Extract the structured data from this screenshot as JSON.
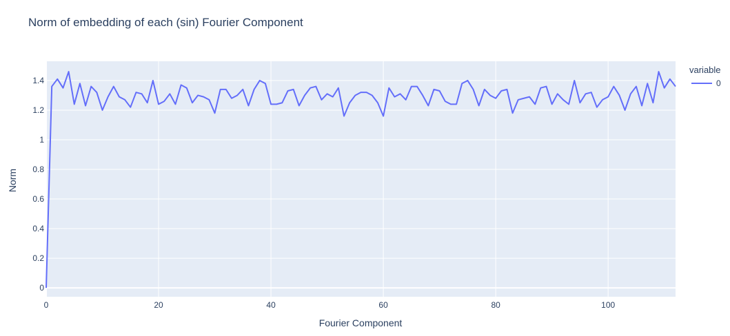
{
  "chart_data": {
    "type": "line",
    "title": "Norm of embedding of each (sin) Fourier Component",
    "xlabel": "Fourier Component",
    "ylabel": "Norm",
    "xlim": [
      0,
      112
    ],
    "ylim": [
      -0.06,
      1.53
    ],
    "x_ticks": [
      0,
      20,
      40,
      60,
      80,
      100
    ],
    "x_tick_labels": [
      "0",
      "20",
      "40",
      "60",
      "80",
      "100"
    ],
    "y_ticks": [
      0,
      0.2,
      0.4,
      0.6,
      0.8,
      1,
      1.2,
      1.4
    ],
    "y_tick_labels": [
      "0",
      "0.2",
      "0.4",
      "0.6",
      "0.8",
      "1",
      "1.2",
      "1.4"
    ],
    "grid": true,
    "legend": {
      "title": "variable",
      "position": "right"
    },
    "colors": {
      "series": "#636efa",
      "plot_background": "#e5ecf6",
      "grid": "#ffffff",
      "text": "#2a3f5f"
    },
    "series": [
      {
        "name": "0",
        "x": [
          0,
          1,
          2,
          3,
          4,
          5,
          6,
          7,
          8,
          9,
          10,
          11,
          12,
          13,
          14,
          15,
          16,
          17,
          18,
          19,
          20,
          21,
          22,
          23,
          24,
          25,
          26,
          27,
          28,
          29,
          30,
          31,
          32,
          33,
          34,
          35,
          36,
          37,
          38,
          39,
          40,
          41,
          42,
          43,
          44,
          45,
          46,
          47,
          48,
          49,
          50,
          51,
          52,
          53,
          54,
          55,
          56,
          57,
          58,
          59,
          60,
          61,
          62,
          63,
          64,
          65,
          66,
          67,
          68,
          69,
          70,
          71,
          72,
          73,
          74,
          75,
          76,
          77,
          78,
          79,
          80,
          81,
          82,
          83,
          84,
          85,
          86,
          87,
          88,
          89,
          90,
          91,
          92,
          93,
          94,
          95,
          96,
          97,
          98,
          99,
          100,
          101,
          102,
          103,
          104,
          105,
          106,
          107,
          108,
          109,
          110,
          111,
          112
        ],
        "values": [
          0.0,
          1.36,
          1.41,
          1.35,
          1.46,
          1.24,
          1.38,
          1.23,
          1.36,
          1.32,
          1.2,
          1.29,
          1.36,
          1.29,
          1.27,
          1.22,
          1.32,
          1.31,
          1.25,
          1.4,
          1.24,
          1.26,
          1.31,
          1.24,
          1.37,
          1.35,
          1.25,
          1.3,
          1.29,
          1.27,
          1.18,
          1.34,
          1.34,
          1.28,
          1.3,
          1.34,
          1.23,
          1.34,
          1.4,
          1.38,
          1.24,
          1.24,
          1.25,
          1.33,
          1.34,
          1.23,
          1.3,
          1.35,
          1.36,
          1.27,
          1.31,
          1.29,
          1.35,
          1.16,
          1.25,
          1.3,
          1.32,
          1.32,
          1.3,
          1.25,
          1.16,
          1.35,
          1.29,
          1.31,
          1.27,
          1.36,
          1.36,
          1.3,
          1.23,
          1.34,
          1.33,
          1.26,
          1.24,
          1.24,
          1.38,
          1.4,
          1.34,
          1.23,
          1.34,
          1.3,
          1.28,
          1.33,
          1.34,
          1.18,
          1.27,
          1.28,
          1.29,
          1.24,
          1.35,
          1.36,
          1.24,
          1.31,
          1.27,
          1.24,
          1.4,
          1.25,
          1.31,
          1.32,
          1.22,
          1.27,
          1.29,
          1.36,
          1.3,
          1.2,
          1.31,
          1.36,
          1.23,
          1.38,
          1.25,
          1.46,
          1.35,
          1.41,
          1.36
        ]
      }
    ]
  }
}
